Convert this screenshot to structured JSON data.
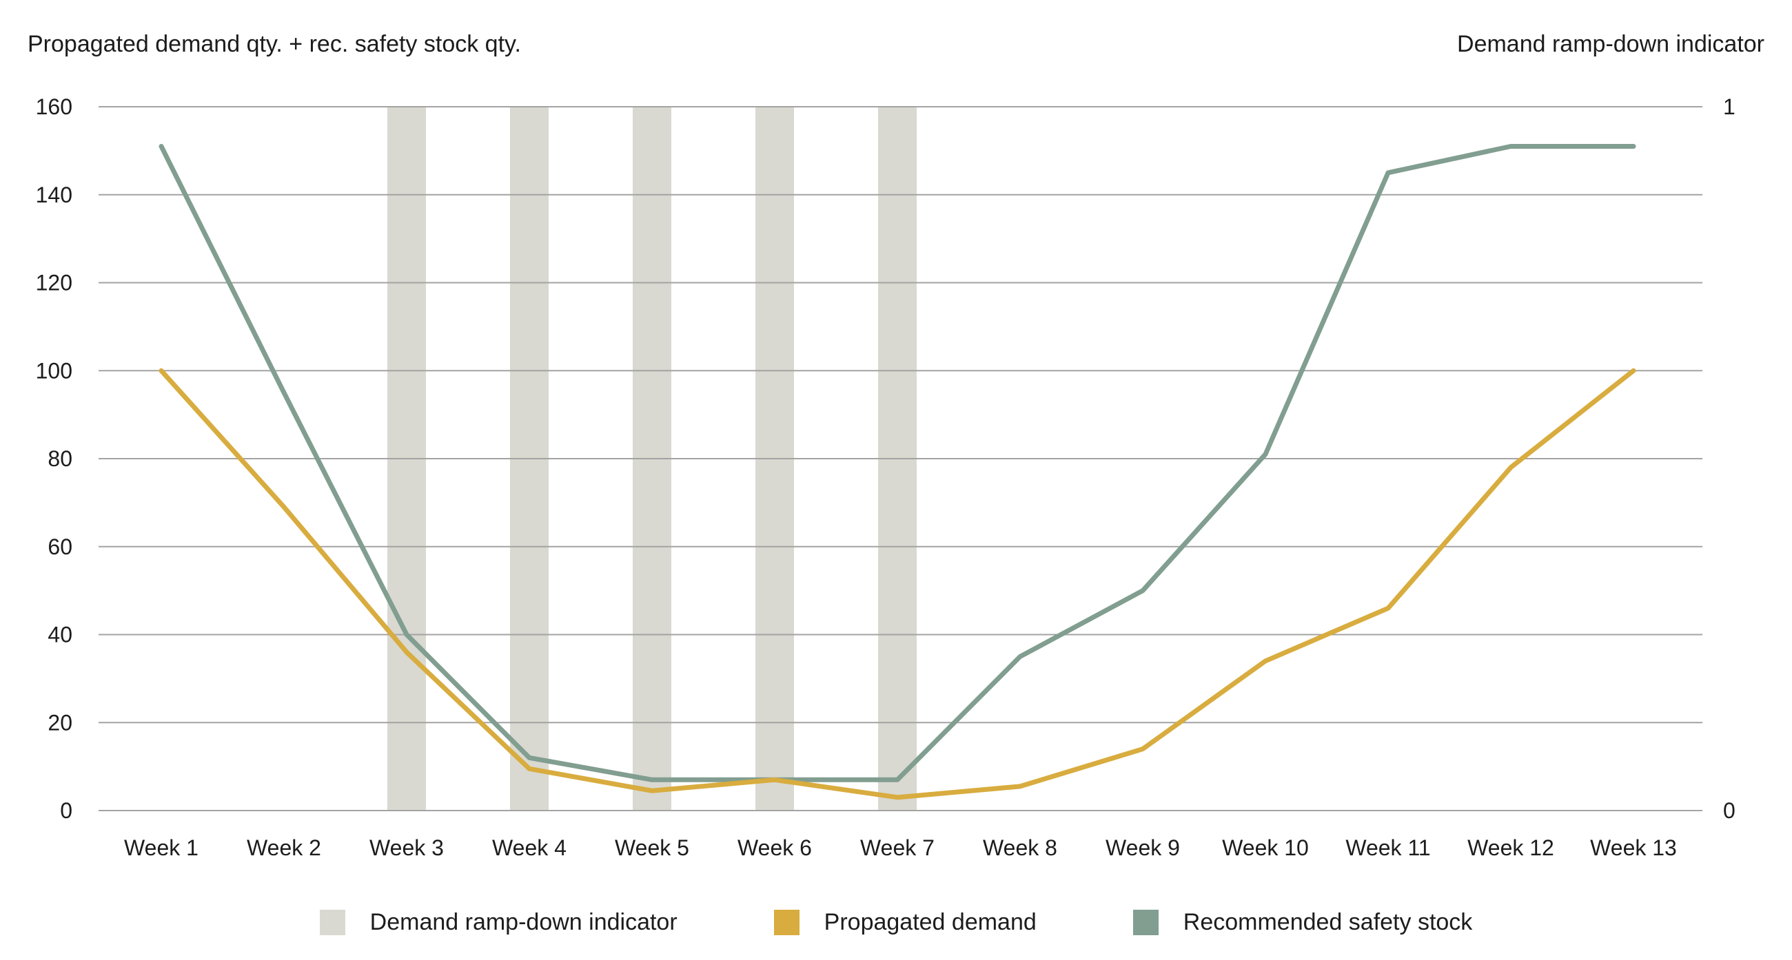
{
  "chart": {
    "left_axis_title": "Propagated demand qty. + rec. safety stock qty.",
    "right_axis_title": "Demand ramp-down indicator"
  },
  "legend": [
    {
      "label": "Demand ramp-down indicator",
      "color": "#d9d9d1"
    },
    {
      "label": "Propagated demand",
      "color": "#d8ac3e"
    },
    {
      "label": "Recommended safety stock",
      "color": "#819e90"
    }
  ],
  "colors": {
    "indicator_bar": "#d9d9d1",
    "propagated_demand": "#d8ac3e",
    "recommended_safety_stock": "#819e90",
    "gridline": "#a3a3a3",
    "text": "#1c1c1c"
  },
  "chart_data": {
    "type": "line",
    "title": "Propagated demand qty. + rec. safety stock qty.",
    "right_title": "Demand ramp-down indicator",
    "categories": [
      "Week 1",
      "Week 2",
      "Week 3",
      "Week 4",
      "Week 5",
      "Week 6",
      "Week 7",
      "Week 8",
      "Week 9",
      "Week 10",
      "Week 11",
      "Week 12",
      "Week 13"
    ],
    "series": [
      {
        "name": "Demand ramp-down indicator",
        "type": "bar",
        "axis": "right",
        "color": "#d9d9d1",
        "values": [
          0,
          0,
          1,
          1,
          1,
          1,
          1,
          0,
          0,
          0,
          0,
          0,
          0
        ]
      },
      {
        "name": "Recommended safety stock",
        "type": "line",
        "axis": "left",
        "color": "#819e90",
        "values": [
          151,
          95,
          40,
          12,
          7,
          7,
          7,
          35,
          50,
          81,
          145,
          151,
          151
        ]
      },
      {
        "name": "Propagated demand",
        "type": "line",
        "axis": "left",
        "color": "#d8ac3e",
        "values": [
          100,
          69,
          36,
          9.5,
          4.5,
          7,
          3,
          5.5,
          14,
          34,
          46,
          78,
          100
        ]
      }
    ],
    "left_axis": {
      "min": 0,
      "max": 160,
      "tick_step": 20,
      "ticks": [
        0,
        20,
        40,
        60,
        80,
        100,
        120,
        140,
        160
      ]
    },
    "right_axis": {
      "min": 0,
      "max": 1,
      "ticks": [
        0,
        1
      ]
    },
    "grid": "horizontal",
    "legend_position": "bottom"
  }
}
